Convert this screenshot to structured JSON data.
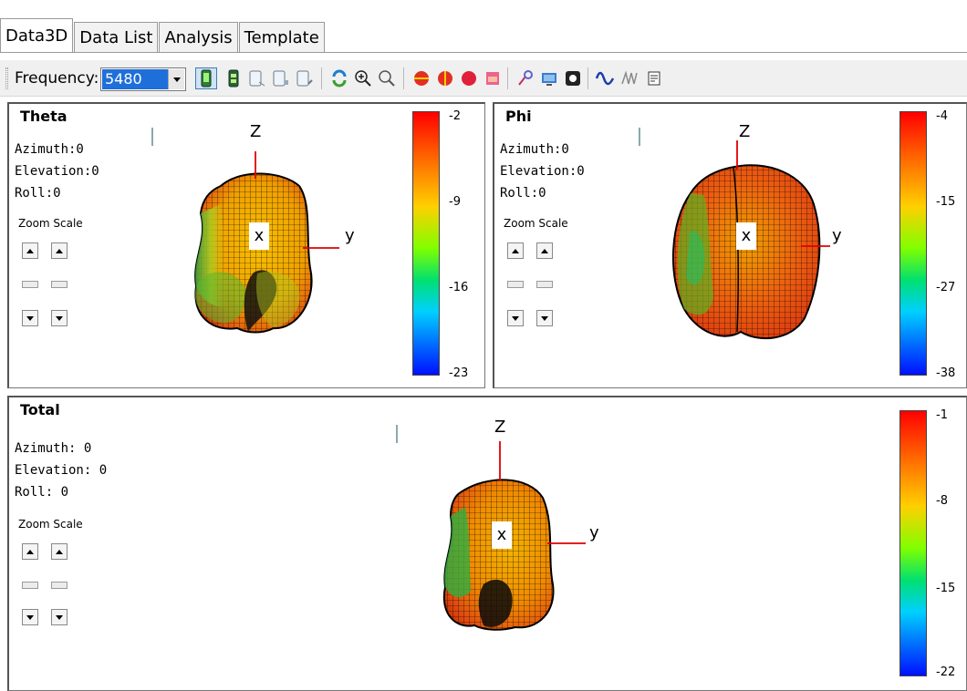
{
  "tabs": [
    {
      "label": "Data3D",
      "active": true
    },
    {
      "label": "Data List",
      "active": false
    },
    {
      "label": "Analysis",
      "active": false
    },
    {
      "label": "Template",
      "active": false
    }
  ],
  "toolbar": {
    "frequency_label": "Frequency:",
    "frequency_value": "5480",
    "icons": [
      "phone-front-icon",
      "phone-back-icon",
      "phone-side-left-icon",
      "phone-side-right-icon",
      "phone-tilt-icon",
      "rotate-icon",
      "zoom-in-icon",
      "zoom-out-icon",
      "hemisphere-horizontal-icon",
      "hemisphere-vertical-icon",
      "sphere-icon",
      "color-map-icon",
      "probe-icon",
      "screen-icon",
      "record-icon",
      "sine-wave-icon",
      "multi-wave-icon",
      "notes-icon"
    ]
  },
  "panels": {
    "theta": {
      "title": "Theta",
      "azimuth": "Azimuth:0",
      "elevation": "Elevation:0",
      "roll": "Roll:0",
      "zoom_label": "Zoom Scale",
      "axis_z": "Z",
      "axis_y": "y",
      "axis_x": "x",
      "colorbar_labels": [
        "-2",
        "-9",
        "-16",
        "-23"
      ]
    },
    "phi": {
      "title": "Phi",
      "azimuth": "Azimuth:0",
      "elevation": "Elevation:0",
      "roll": "Roll:0",
      "zoom_label": "Zoom Scale",
      "axis_z": "Z",
      "axis_y": "y",
      "axis_x": "x",
      "colorbar_labels": [
        "-4",
        "-15",
        "-27",
        "-38"
      ]
    },
    "total": {
      "title": "Total",
      "azimuth": "Azimuth: 0",
      "elevation": "Elevation: 0",
      "roll": "Roll: 0",
      "zoom_label": "Zoom Scale",
      "axis_z": "Z",
      "axis_y": "y",
      "axis_x": "x",
      "colorbar_labels": [
        "-1",
        "-8",
        "-15",
        "-22"
      ]
    }
  },
  "colors": {
    "selection": "#1e6fd9",
    "axis": "#e00000",
    "mesh_hot": "#e83a10",
    "mesh_warm": "#f0b000",
    "mesh_cool": "#3ab020"
  }
}
